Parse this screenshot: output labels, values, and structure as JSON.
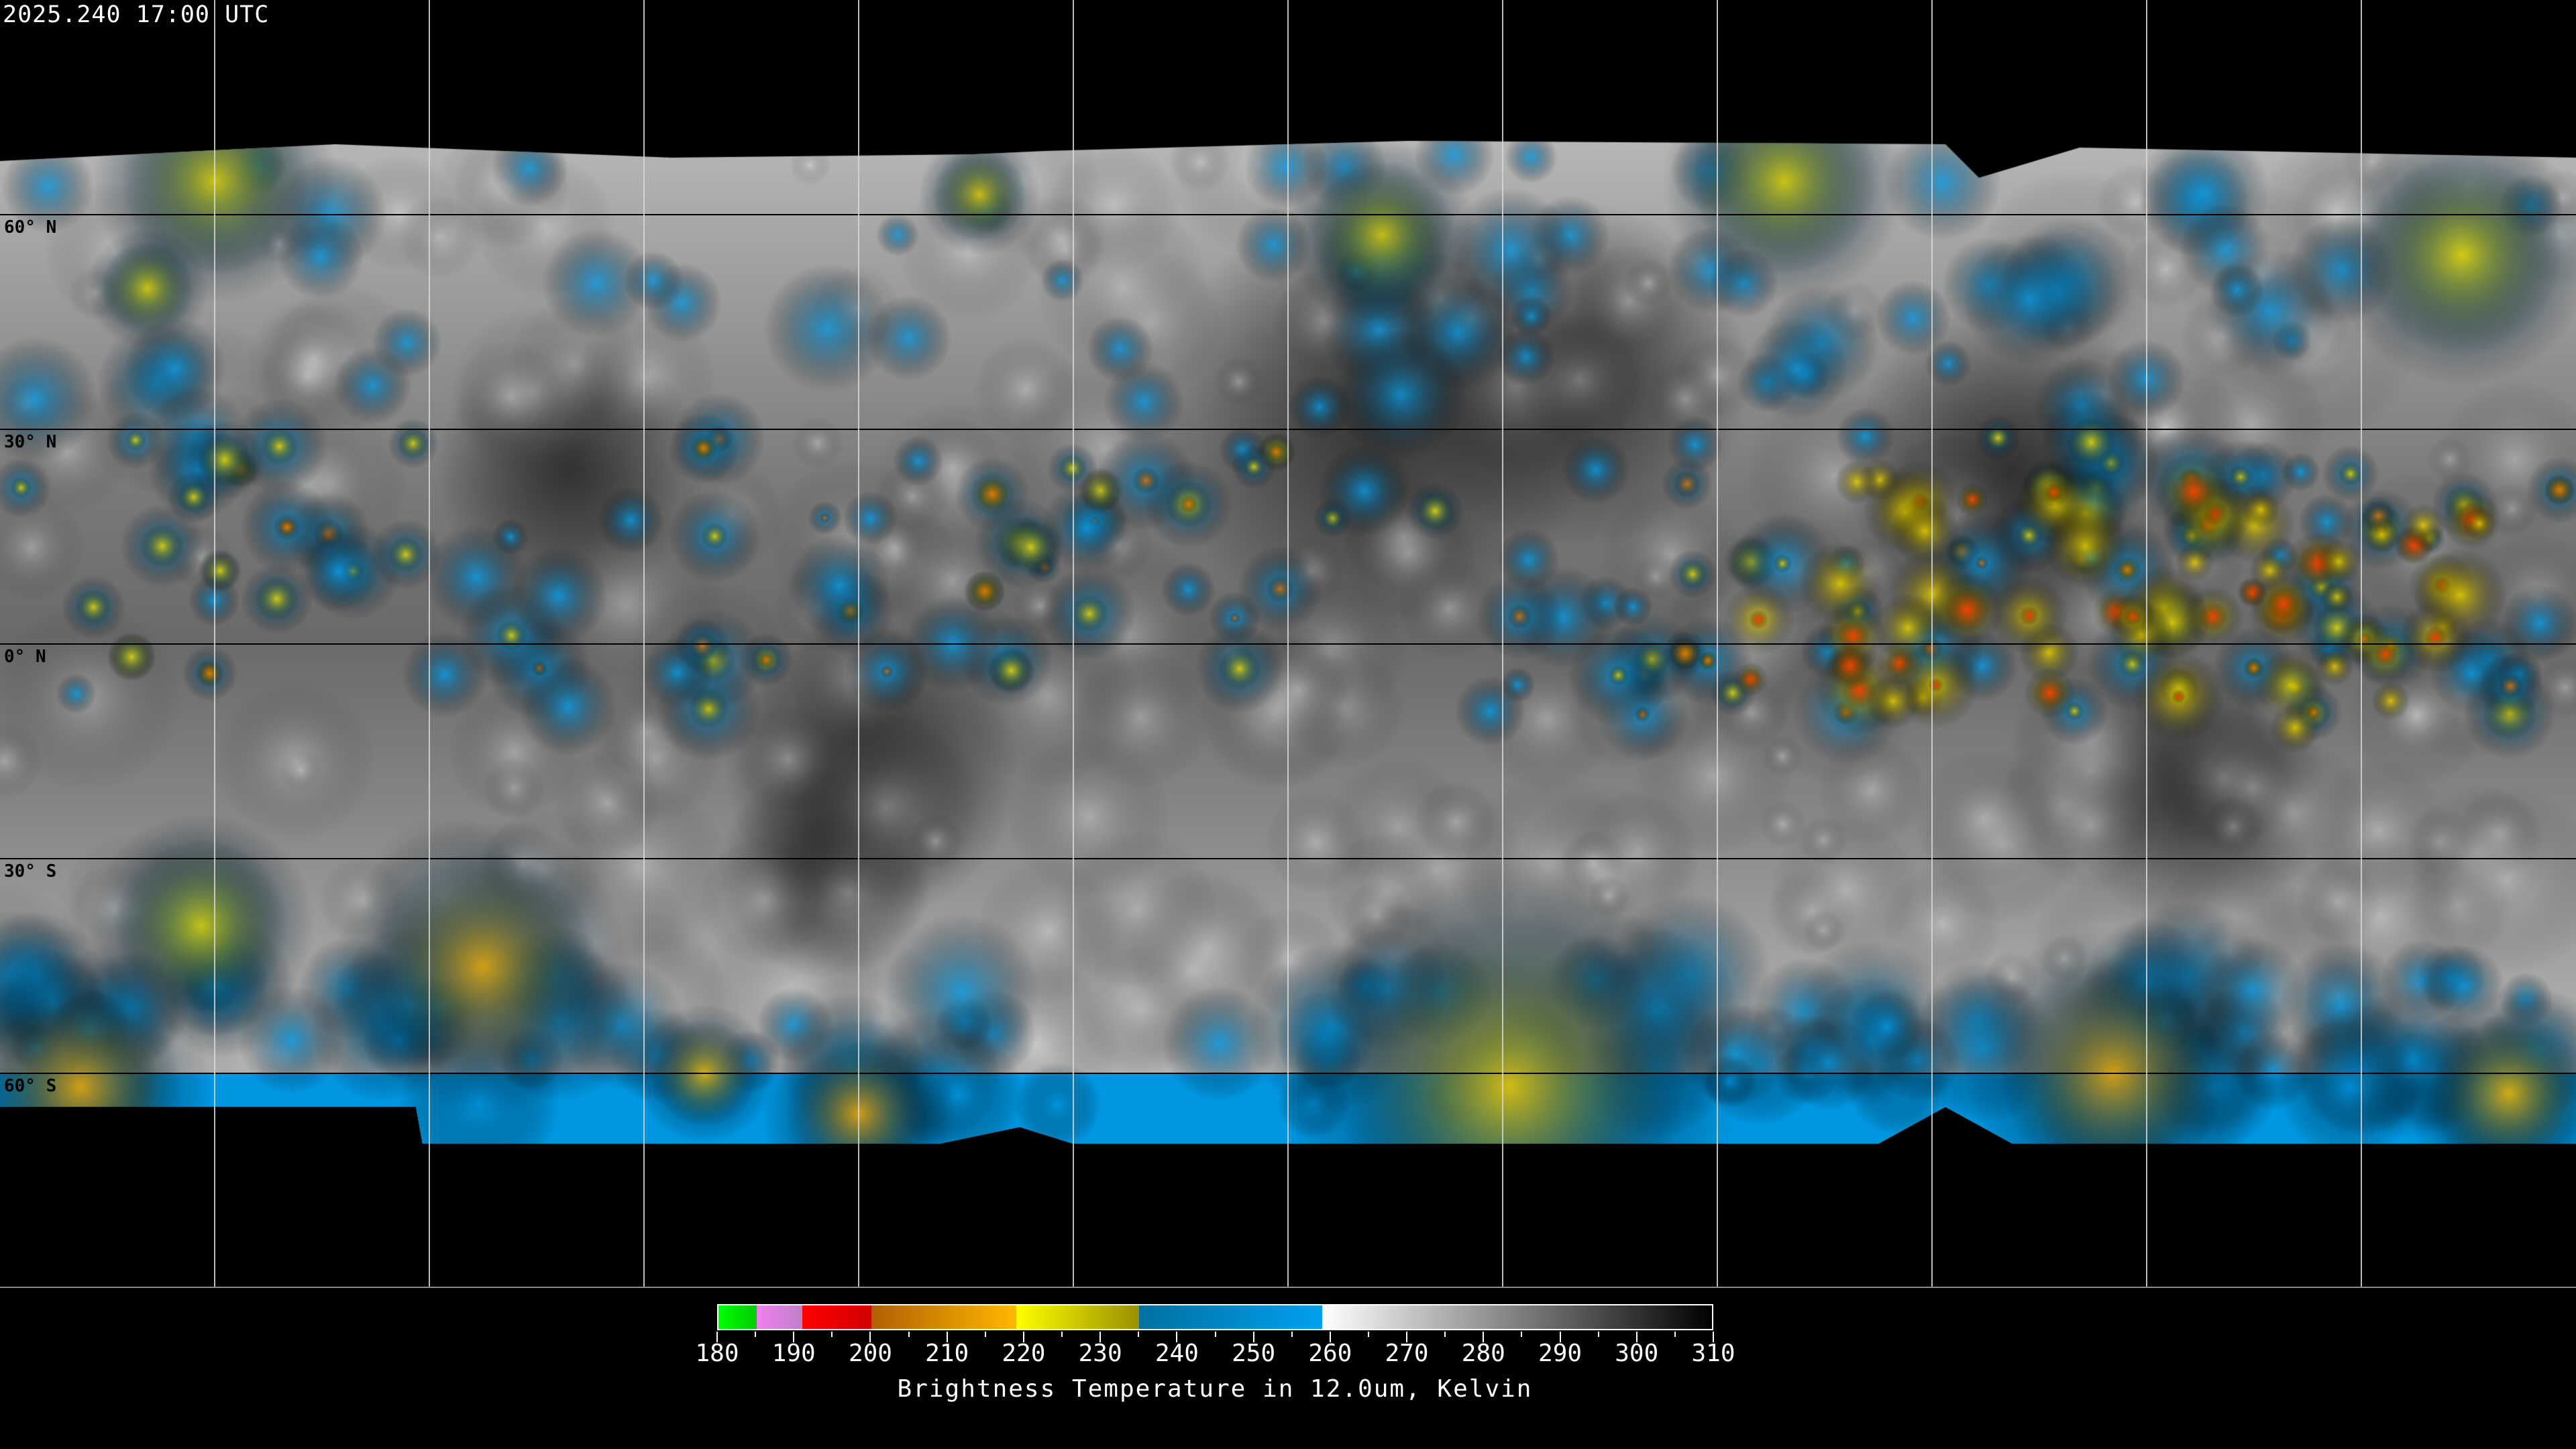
{
  "header": {
    "timestamp": "2025.240 17:00 UTC"
  },
  "map": {
    "latitude_labels": [
      "60° N",
      "30° N",
      "0° N",
      "30° S",
      "60° S"
    ],
    "latitudes": [
      60,
      30,
      0,
      -30,
      -60
    ],
    "longitude_grid_spacing_deg": 30
  },
  "colorbar": {
    "title": "Brightness Temperature in 12.0um, Kelvin",
    "min": 180,
    "max": 310,
    "ticks": [
      "180",
      "190",
      "200",
      "210",
      "220",
      "230",
      "240",
      "250",
      "260",
      "270",
      "280",
      "290",
      "300",
      "310"
    ],
    "segments": [
      {
        "from": 180,
        "to": 185,
        "colors": [
          "#00ff00",
          "#00cc00"
        ]
      },
      {
        "from": 185,
        "to": 191,
        "colors": [
          "#f080f0",
          "#c080c8"
        ]
      },
      {
        "from": 191,
        "to": 200,
        "colors": [
          "#ff0000",
          "#d00000"
        ]
      },
      {
        "from": 200,
        "to": 219,
        "colors": [
          "#b06000",
          "#ffb800"
        ]
      },
      {
        "from": 219,
        "to": 235,
        "colors": [
          "#ffff00",
          "#989000"
        ]
      },
      {
        "from": 235,
        "to": 259,
        "colors": [
          "#0070a0",
          "#00a0f0"
        ]
      },
      {
        "from": 259,
        "to": 310,
        "colors": [
          "#ffffff",
          "#000000"
        ]
      }
    ]
  }
}
